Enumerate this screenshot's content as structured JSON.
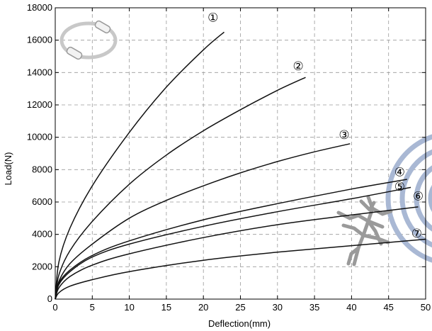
{
  "chart_data": {
    "type": "line",
    "xlabel": "Deflection(mm)",
    "ylabel": "Load(N)",
    "xlim": [
      0,
      50
    ],
    "ylim": [
      0,
      18000
    ],
    "xticks": [
      0,
      5,
      10,
      15,
      20,
      25,
      30,
      35,
      40,
      45,
      50
    ],
    "yticks": [
      0,
      2000,
      4000,
      6000,
      8000,
      10000,
      12000,
      14000,
      16000,
      18000
    ],
    "grid": true,
    "series": [
      {
        "name": "①",
        "x": [
          0,
          0.5,
          2,
          5,
          10,
          15,
          20,
          22.8
        ],
        "y": [
          0,
          2300,
          4400,
          7000,
          10300,
          13100,
          15400,
          16500
        ]
      },
      {
        "name": "②",
        "x": [
          0,
          0.5,
          2,
          5,
          10,
          15,
          20,
          25,
          30,
          33.8
        ],
        "y": [
          0,
          1500,
          3000,
          4800,
          7100,
          8900,
          10400,
          11700,
          12900,
          13700
        ]
      },
      {
        "name": "③",
        "x": [
          0,
          0.5,
          2,
          5,
          10,
          15,
          20,
          25,
          30,
          35,
          39.8
        ],
        "y": [
          0,
          1100,
          2200,
          3400,
          5000,
          6100,
          7000,
          7800,
          8500,
          9100,
          9600
        ]
      },
      {
        "name": "④",
        "x": [
          0,
          0.5,
          2,
          5,
          10,
          20,
          30,
          40,
          47.5
        ],
        "y": [
          0,
          1000,
          1800,
          2700,
          3600,
          4900,
          5900,
          6800,
          7400
        ]
      },
      {
        "name": "⑤",
        "x": [
          0,
          0.5,
          2,
          5,
          10,
          20,
          30,
          40,
          48
        ],
        "y": [
          0,
          900,
          1700,
          2600,
          3400,
          4500,
          5400,
          6200,
          6900
        ]
      },
      {
        "name": "⑥",
        "x": [
          0,
          0.5,
          2,
          5,
          10,
          20,
          30,
          40,
          49
        ],
        "y": [
          0,
          700,
          1400,
          2100,
          2800,
          3800,
          4600,
          5200,
          5700
        ]
      },
      {
        "name": "⑦",
        "x": [
          0,
          0.5,
          2,
          5,
          10,
          20,
          30,
          40,
          50
        ],
        "y": [
          0,
          400,
          800,
          1200,
          1700,
          2400,
          2900,
          3300,
          3700
        ]
      }
    ],
    "curve_labels": [
      {
        "text": "①",
        "x": 21.3,
        "y": 17150
      },
      {
        "text": "②",
        "x": 32.8,
        "y": 14150
      },
      {
        "text": "③",
        "x": 39.0,
        "y": 9900
      },
      {
        "text": "④",
        "x": 46.5,
        "y": 7600
      },
      {
        "text": "⑤",
        "x": 46.5,
        "y": 6700
      },
      {
        "text": "⑥",
        "x": 49.0,
        "y": 6100
      },
      {
        "text": "⑦",
        "x": 48.8,
        "y": 3800
      }
    ]
  }
}
